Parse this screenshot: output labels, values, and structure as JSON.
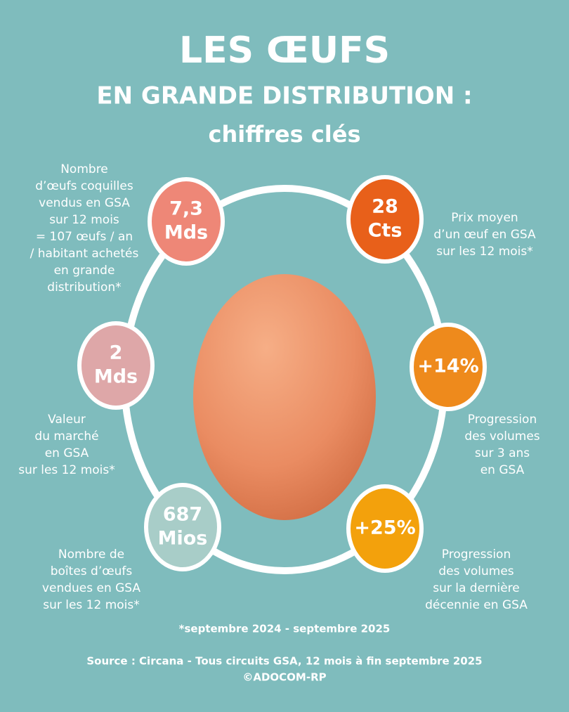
{
  "header": {
    "title": "LES ŒUFS",
    "subtitle": "EN GRANDE DISTRIBUTION :",
    "tagline": "chiffres clés"
  },
  "stats": [
    {
      "value": [
        "7,3",
        "Mds"
      ],
      "description": [
        "Nombre",
        "d’œufs coquilles",
        "vendus en GSA",
        "sur 12 mois",
        "= 107 œufs / an",
        "/ habitant achetés",
        "en grande",
        "distribution*"
      ]
    },
    {
      "value": [
        "28",
        "Cts"
      ],
      "description": [
        "Prix moyen",
        "d’un œuf en GSA",
        "sur les 12 mois*"
      ]
    },
    {
      "value": [
        "2",
        "Mds"
      ],
      "description": [
        "Valeur",
        "du marché",
        "en GSA",
        "sur les 12 mois*"
      ]
    },
    {
      "value": [
        "+14%"
      ],
      "description": [
        "Progression",
        "des volumes",
        "sur 3 ans",
        "en GSA"
      ]
    },
    {
      "value": [
        "687",
        "Mios"
      ],
      "description": [
        "Nombre de",
        "boîtes d’œufs",
        "vendues en GSA",
        "sur les 12 mois*"
      ]
    },
    {
      "value": [
        "+25%"
      ],
      "description": [
        "Progression",
        "des volumes",
        "sur la dernière",
        "décennie en GSA"
      ]
    }
  ],
  "footer": {
    "note": "*septembre 2024 - septembre 2025",
    "source": "Source : Circana - Tous circuits GSA, 12 mois à fin septembre 2025",
    "copyright": "©ADOCOM-RP"
  }
}
